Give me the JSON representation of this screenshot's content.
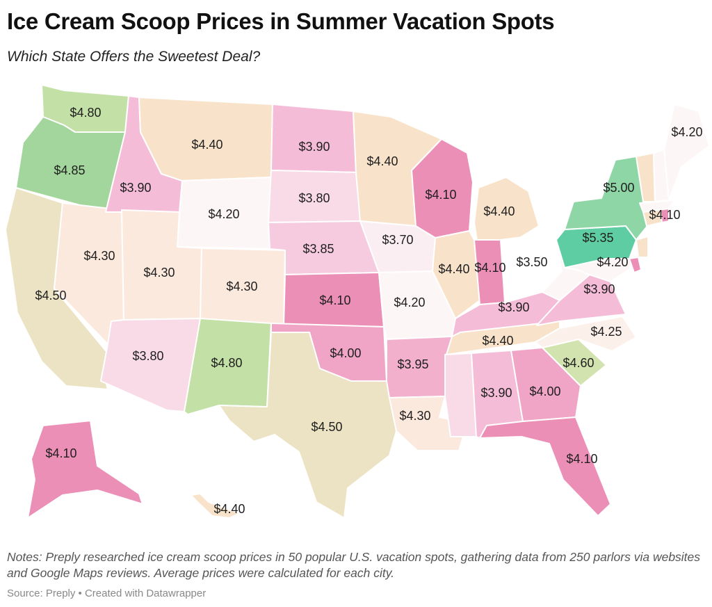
{
  "title": "Ice Cream Scoop Prices in Summer Vacation Spots",
  "subtitle": "Which State Offers the Sweetest Deal?",
  "notes": "Notes: Preply researched ice cream scoop prices in 50 popular U.S. vacation spots, gathering data from 250 parlors via websites and Google Maps reviews. Average prices were calculated for each city.",
  "source": "Source: Preply • Created with Datawrapper",
  "states": [
    {
      "id": "WA",
      "price": "$4.80",
      "color": "#c3e0a6"
    },
    {
      "id": "OR",
      "price": "$4.85",
      "color": "#a3d69c"
    },
    {
      "id": "CA",
      "price": "$4.50",
      "color": "#ebe3c3"
    },
    {
      "id": "NV",
      "price": "$4.30",
      "color": "#fbe9dd"
    },
    {
      "id": "ID",
      "price": "$3.90",
      "color": "#f5bcd7"
    },
    {
      "id": "MT",
      "price": "$4.40",
      "color": "#f8e3ca"
    },
    {
      "id": "WY",
      "price": "$4.20",
      "color": "#fdf6f6"
    },
    {
      "id": "UT",
      "price": "$4.30",
      "color": "#fbe9dd"
    },
    {
      "id": "AZ",
      "price": "$3.80",
      "color": "#f8dbe6"
    },
    {
      "id": "CO",
      "price": "$4.30",
      "color": "#fbe9dd"
    },
    {
      "id": "NM",
      "price": "$4.80",
      "color": "#c3e0a6"
    },
    {
      "id": "ND",
      "price": "$3.90",
      "color": "#f5bcd7"
    },
    {
      "id": "SD",
      "price": "$3.80",
      "color": "#f8dbe6"
    },
    {
      "id": "NE",
      "price": "$3.85",
      "color": "#f6cbdf"
    },
    {
      "id": "KS",
      "price": "$4.10",
      "color": "#ec8fb7"
    },
    {
      "id": "OK",
      "price": "$4.00",
      "color": "#f0a5c7"
    },
    {
      "id": "TX",
      "price": "$4.50",
      "color": "#ebe3c3"
    },
    {
      "id": "MN",
      "price": "$4.40",
      "color": "#f8e3ca"
    },
    {
      "id": "IA",
      "price": "$3.70",
      "color": "#fbeef2"
    },
    {
      "id": "MO",
      "price": "$4.20",
      "color": "#fdf6f6"
    },
    {
      "id": "AR",
      "price": "$3.95",
      "color": "#f2b0cd"
    },
    {
      "id": "LA",
      "price": "$4.30",
      "color": "#fbe9dd"
    },
    {
      "id": "WI",
      "price": "$4.10",
      "color": "#ec8fb7"
    },
    {
      "id": "IL",
      "price": "$4.40",
      "color": "#f8e3ca"
    },
    {
      "id": "MI",
      "price": "$4.40",
      "color": "#f8e3ca"
    },
    {
      "id": "IN",
      "price": "$4.10",
      "color": "#ec8fb7"
    },
    {
      "id": "OH",
      "price": "$3.50",
      "color": "#ffffff"
    },
    {
      "id": "KY",
      "price": "$3.90",
      "color": "#f5bcd7"
    },
    {
      "id": "TN",
      "price": "$4.40",
      "color": "#f8e3ca"
    },
    {
      "id": "MS",
      "price": "",
      "color": "#f8dbe6"
    },
    {
      "id": "AL",
      "price": "$3.90",
      "color": "#f5bcd7"
    },
    {
      "id": "GA",
      "price": "$4.00",
      "color": "#f0a5c7"
    },
    {
      "id": "FL",
      "price": "$4.10",
      "color": "#ec8fb7"
    },
    {
      "id": "SC",
      "price": "$4.60",
      "color": "#d3e3b0"
    },
    {
      "id": "NC",
      "price": "$4.25",
      "color": "#fcf0ea"
    },
    {
      "id": "VA",
      "price": "$3.90",
      "color": "#f5bcd7"
    },
    {
      "id": "WV",
      "price": "",
      "color": "#fdf6f6"
    },
    {
      "id": "MD",
      "price": "$4.20",
      "color": "#fdf6f6"
    },
    {
      "id": "DE",
      "price": "",
      "color": "#ec8fb7"
    },
    {
      "id": "PA",
      "price": "$5.35",
      "color": "#5fcda4"
    },
    {
      "id": "NJ",
      "price": "",
      "color": "#f8e3ca"
    },
    {
      "id": "NY",
      "price": "$5.00",
      "color": "#8fd6a6"
    },
    {
      "id": "CT",
      "price": "",
      "color": "#f8e3ca"
    },
    {
      "id": "RI",
      "price": "$4.10",
      "color": "#ec8fb7"
    },
    {
      "id": "MA",
      "price": "",
      "color": "#fdf6f6"
    },
    {
      "id": "VT",
      "price": "",
      "color": "#f8e3ca"
    },
    {
      "id": "NH",
      "price": "",
      "color": "#fdf6f6"
    },
    {
      "id": "ME",
      "price": "$4.20",
      "color": "#fdf6f6"
    },
    {
      "id": "AK",
      "price": "$4.10",
      "color": "#ec8fb7"
    },
    {
      "id": "HI",
      "price": "$4.40",
      "color": "#f8e3ca"
    }
  ]
}
